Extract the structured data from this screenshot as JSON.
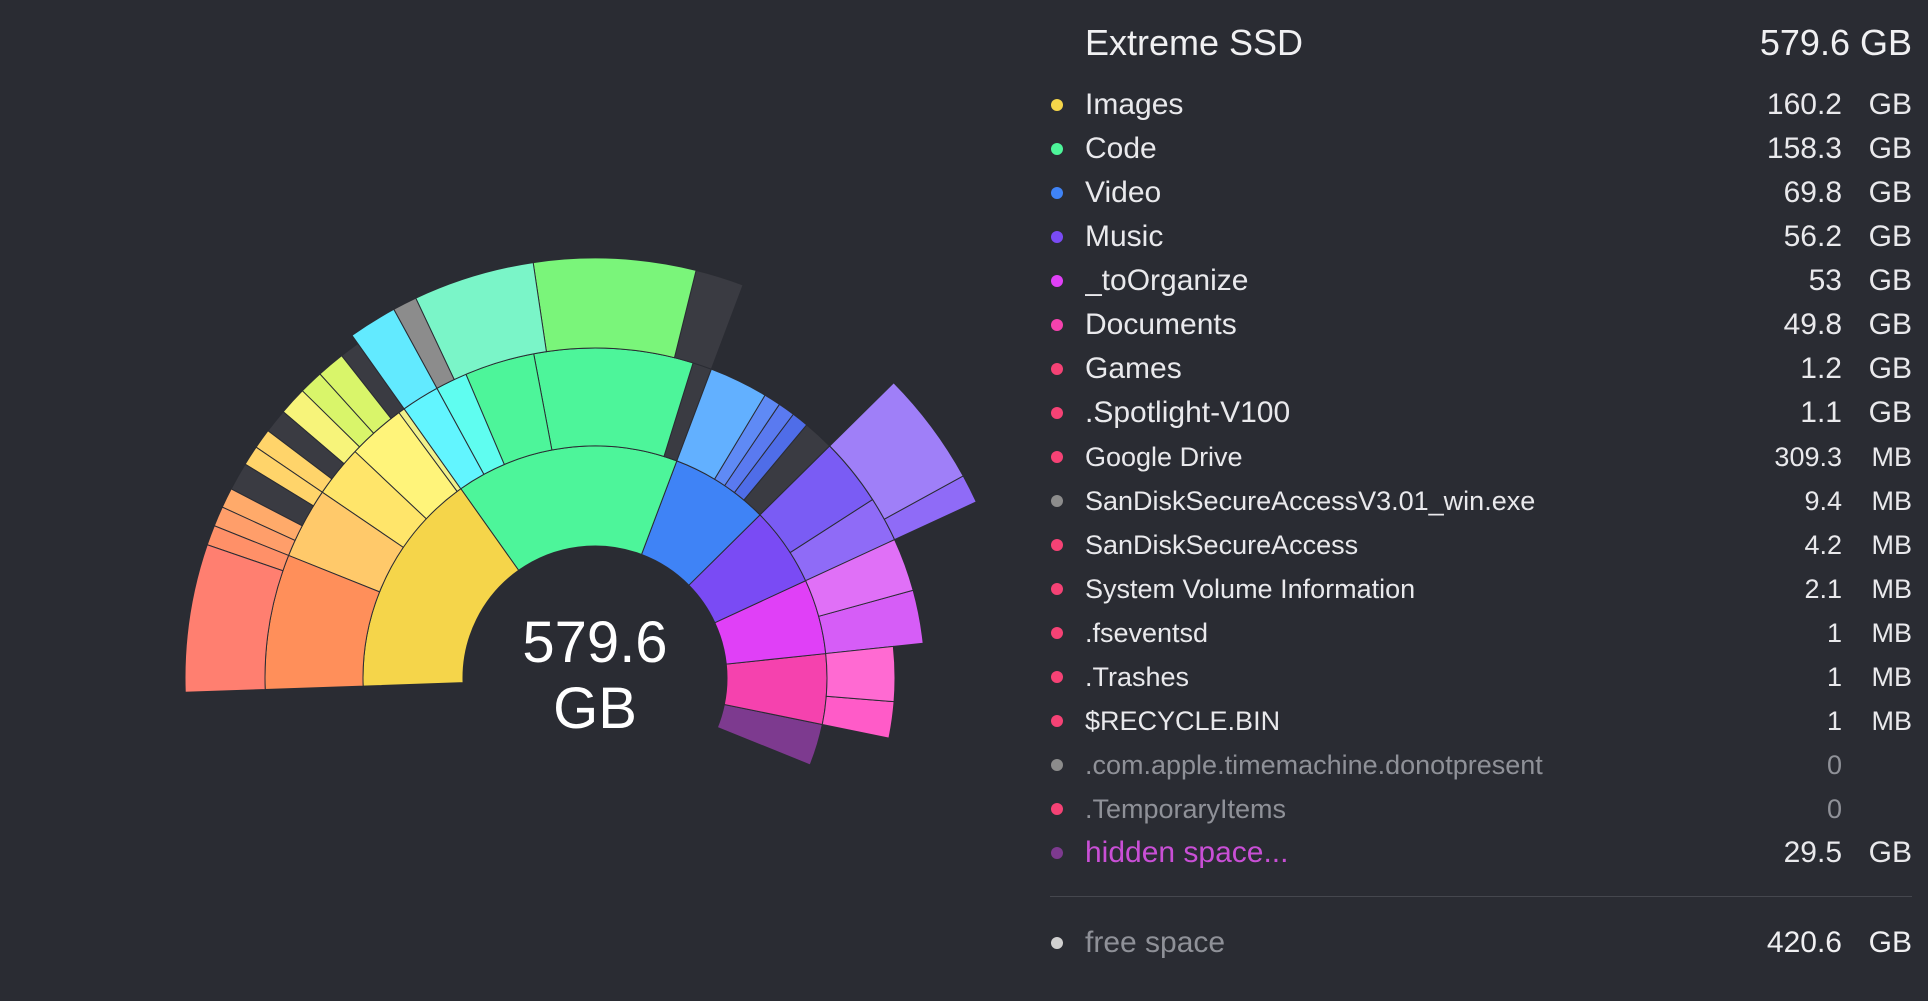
{
  "drive": {
    "name": "Extreme SSD",
    "size": "579.6 GB"
  },
  "center": {
    "value": "579.6",
    "unit": "GB"
  },
  "items": [
    {
      "name": "Images",
      "num": "160.2",
      "unit": "GB",
      "color": "#f5d54a",
      "style": "normal"
    },
    {
      "name": "Code",
      "num": "158.3",
      "unit": "GB",
      "color": "#4df59a",
      "style": "normal"
    },
    {
      "name": "Video",
      "num": "69.8",
      "unit": "GB",
      "color": "#3f83f6",
      "style": "normal"
    },
    {
      "name": "Music",
      "num": "56.2",
      "unit": "GB",
      "color": "#7a4bf4",
      "style": "normal"
    },
    {
      "name": "_toOrganize",
      "num": "53",
      "unit": "GB",
      "color": "#e040f7",
      "style": "normal"
    },
    {
      "name": "Documents",
      "num": "49.8",
      "unit": "GB",
      "color": "#f542ae",
      "style": "normal"
    },
    {
      "name": "Games",
      "num": "1.2",
      "unit": "GB",
      "color": "#f54275",
      "style": "normal"
    },
    {
      "name": ".Spotlight-V100",
      "num": "1.1",
      "unit": "GB",
      "color": "#f54275",
      "style": "normal"
    },
    {
      "name": "Google Drive",
      "num": "309.3",
      "unit": "MB",
      "color": "#f54275",
      "style": "small"
    },
    {
      "name": "SanDiskSecureAccessV3.01_win.exe",
      "num": "9.4",
      "unit": "MB",
      "color": "#8c8c8c",
      "style": "small"
    },
    {
      "name": "SanDiskSecureAccess",
      "num": "4.2",
      "unit": "MB",
      "color": "#f54275",
      "style": "small"
    },
    {
      "name": "System Volume Information",
      "num": "2.1",
      "unit": "MB",
      "color": "#f54275",
      "style": "small"
    },
    {
      "name": ".fseventsd",
      "num": "1",
      "unit": "MB",
      "color": "#f54275",
      "style": "small"
    },
    {
      "name": ".Trashes",
      "num": "1",
      "unit": "MB",
      "color": "#f54275",
      "style": "small"
    },
    {
      "name": "$RECYCLE.BIN",
      "num": "1",
      "unit": "MB",
      "color": "#f54275",
      "style": "small"
    },
    {
      "name": ".com.apple.timemachine.donotpresent",
      "num": "0",
      "unit": "",
      "color": "#8c8c8c",
      "style": "dim"
    },
    {
      "name": ".TemporaryItems",
      "num": "0",
      "unit": "",
      "color": "#f54275",
      "style": "dim"
    },
    {
      "name": "hidden space...",
      "num": "29.5",
      "unit": "GB",
      "color": "#7d3a8f",
      "style": "hidden"
    }
  ],
  "free": {
    "name": "free space",
    "num": "420.6",
    "unit": "GB",
    "color": "#d0d0d0"
  },
  "chart_data": {
    "type": "sunburst",
    "total_gb": 579.6,
    "segments": [
      {
        "name": "Images",
        "value": 160.2,
        "color": "#f5d54a"
      },
      {
        "name": "Code",
        "value": 158.3,
        "color": "#4df59a"
      },
      {
        "name": "Video",
        "value": 69.8,
        "color": "#3f83f6"
      },
      {
        "name": "Music",
        "value": 56.2,
        "color": "#7a4bf4"
      },
      {
        "name": "_toOrganize",
        "value": 53,
        "color": "#e040f7"
      },
      {
        "name": "Documents",
        "value": 49.8,
        "color": "#f542ae"
      },
      {
        "name": "hidden space...",
        "value": 29.5,
        "color": "#7d3a8f"
      }
    ]
  }
}
